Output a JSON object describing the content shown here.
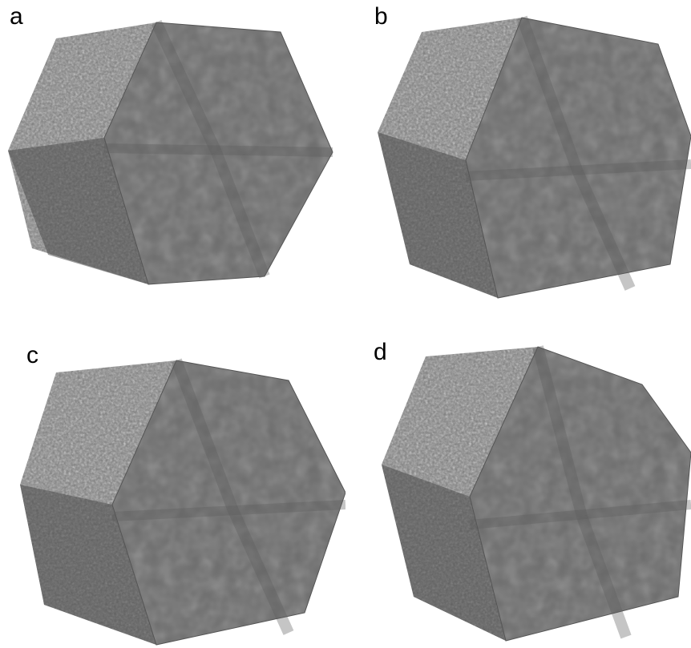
{
  "panels": [
    {
      "label": "a"
    },
    {
      "label": "b"
    },
    {
      "label": "c"
    },
    {
      "label": "d"
    }
  ],
  "colors": {
    "background": "#ffffff",
    "front_face": "#6e6e6e",
    "rough_faces": "#7a7a7a",
    "text": "#000000"
  }
}
